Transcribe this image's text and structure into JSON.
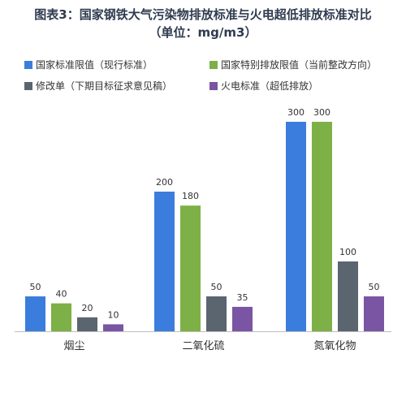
{
  "title_line1": "图表3：国家钢铁大气污染物排放标准与火电超低排放标准对比",
  "title_line2": "（单位：mg/m3）",
  "chart_data": {
    "type": "bar",
    "categories": [
      "烟尘",
      "二氧化硫",
      "氮氧化物"
    ],
    "series": [
      {
        "name": "国家标准限值（现行标准）",
        "color": "#3b7ddd",
        "values": [
          50,
          200,
          300
        ]
      },
      {
        "name": "国家特别排放限值（当前整改方向）",
        "color": "#7db046",
        "values": [
          40,
          180,
          300
        ]
      },
      {
        "name": "修改单（下期目标征求意见稿）",
        "color": "#5b6570",
        "values": [
          20,
          50,
          100
        ]
      },
      {
        "name": "火电标准（超低排放）",
        "color": "#7a55a3",
        "values": [
          10,
          35,
          50
        ]
      }
    ],
    "ylim": [
      0,
      300
    ],
    "grid": false,
    "legend_position": "top",
    "data_labels": true
  }
}
